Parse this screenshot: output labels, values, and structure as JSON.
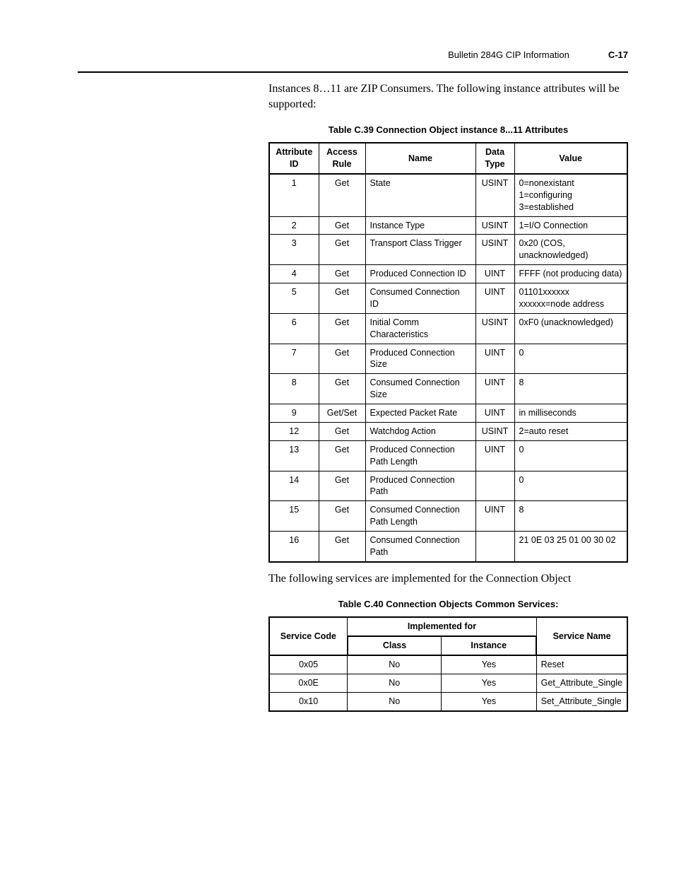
{
  "header": {
    "title": "Bulletin 284G CIP Information",
    "pagenum": "C-17"
  },
  "para1": "Instances 8…11 are ZIP Consumers. The following instance attributes will be supported:",
  "table1": {
    "caption": "Table C.39   Connection Object instance 8...11 Attributes",
    "cols": [
      "Attribute ID",
      "Access Rule",
      "Name",
      "Data Type",
      "Value"
    ],
    "rows": [
      [
        "1",
        "Get",
        "State",
        "USINT",
        "0=nonexistant\n1=configuring\n3=established"
      ],
      [
        "2",
        "Get",
        "Instance Type",
        "USINT",
        "1=I/O Connection"
      ],
      [
        "3",
        "Get",
        "Transport Class Trigger",
        "USINT",
        "0x20 (COS, unacknowledged)"
      ],
      [
        "4",
        "Get",
        "Produced Connection ID",
        "UINT",
        "FFFF (not producing data)"
      ],
      [
        "5",
        "Get",
        "Consumed Connection ID",
        "UINT",
        "01101xxxxxx\nxxxxxx=node  address"
      ],
      [
        "6",
        "Get",
        "Initial Comm Characteristics",
        "USINT",
        "0xF0 (unacknowledged)"
      ],
      [
        "7",
        "Get",
        "Produced Connection Size",
        "UINT",
        "0"
      ],
      [
        "8",
        "Get",
        "Consumed Connection Size",
        "UINT",
        "8"
      ],
      [
        "9",
        "Get/Set",
        "Expected Packet Rate",
        "UINT",
        "in milliseconds"
      ],
      [
        "12",
        "Get",
        "Watchdog Action",
        "USINT",
        "2=auto reset"
      ],
      [
        "13",
        "Get",
        "Produced Connection Path Length",
        "UINT",
        "0"
      ],
      [
        "14",
        "Get",
        "Produced Connection Path",
        "",
        "0"
      ],
      [
        "15",
        "Get",
        "Consumed Connection Path Length",
        "UINT",
        "8"
      ],
      [
        "16",
        "Get",
        "Consumed Connection Path",
        "",
        "21 0E 03 25 01 00 30 02"
      ]
    ]
  },
  "para2": "The following services are implemented for the Connection Object",
  "table2": {
    "caption": "Table C.40   Connection Objects Common Services:",
    "head": {
      "service_code": "Service Code",
      "implemented_for": "Implemented for",
      "class": "Class",
      "instance": "Instance",
      "service_name": "Service Name"
    },
    "rows": [
      [
        "0x05",
        "No",
        "Yes",
        "Reset"
      ],
      [
        "0x0E",
        "No",
        "Yes",
        "Get_Attribute_Single"
      ],
      [
        "0x10",
        "No",
        "Yes",
        "Set_Attribute_Single"
      ]
    ]
  }
}
